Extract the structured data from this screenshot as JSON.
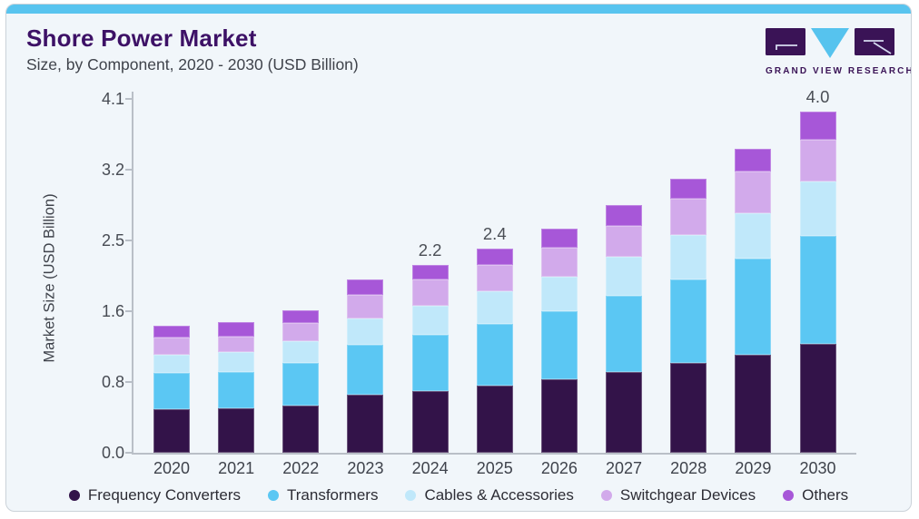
{
  "page": {
    "title": "Shore Power Market",
    "subtitle": "Size, by Component, 2020 - 2030 (USD Billion)",
    "brand": {
      "name": "GRAND VIEW RESEARCH",
      "logo_dark_color": "#3a1356",
      "logo_blue_color": "#56c3ee"
    },
    "accent_bar_color": "#58c4ef",
    "panel_bg": "#f1f6fa",
    "panel_border": "#cbd2d9"
  },
  "chart_data": {
    "type": "bar",
    "stacked": true,
    "title": "Shore Power Market Size, by Component, 2020 - 2030 (USD Billion)",
    "ylabel": "Market Size (USD Billion)",
    "xlabel": "",
    "ylim": [
      0,
      4.1
    ],
    "ytick_labels": [
      "0.0",
      "0.8",
      "1.6",
      "2.5",
      "3.2",
      "4.1"
    ],
    "grid": false,
    "legend_position": "bottom",
    "categories": [
      "2020",
      "2021",
      "2022",
      "2023",
      "2024",
      "2025",
      "2026",
      "2027",
      "2028",
      "2029",
      "2030"
    ],
    "series": [
      {
        "name": "Frequency Converters",
        "color": "#331349",
        "values": [
          0.5,
          0.51,
          0.55,
          0.67,
          0.71,
          0.78,
          0.85,
          0.94,
          1.04,
          1.14,
          1.26
        ]
      },
      {
        "name": "Transformers",
        "color": "#5bc7f3",
        "values": [
          0.43,
          0.43,
          0.49,
          0.58,
          0.66,
          0.71,
          0.79,
          0.88,
          0.97,
          1.11,
          1.25
        ]
      },
      {
        "name": "Cables & Accessories",
        "color": "#c0e8fa",
        "values": [
          0.21,
          0.23,
          0.25,
          0.31,
          0.33,
          0.38,
          0.4,
          0.45,
          0.51,
          0.53,
          0.63
        ]
      },
      {
        "name": "Switchgear Devices",
        "color": "#d2aaeb",
        "values": [
          0.2,
          0.18,
          0.21,
          0.27,
          0.31,
          0.31,
          0.34,
          0.36,
          0.42,
          0.48,
          0.49
        ]
      },
      {
        "name": "Others",
        "color": "#a757d8",
        "values": [
          0.13,
          0.16,
          0.15,
          0.18,
          0.17,
          0.19,
          0.22,
          0.24,
          0.23,
          0.26,
          0.32
        ]
      }
    ],
    "value_labels": [
      {
        "category": "2024",
        "label": "2.2"
      },
      {
        "category": "2025",
        "label": "2.4"
      },
      {
        "category": "2030",
        "label": "4.0"
      }
    ]
  }
}
